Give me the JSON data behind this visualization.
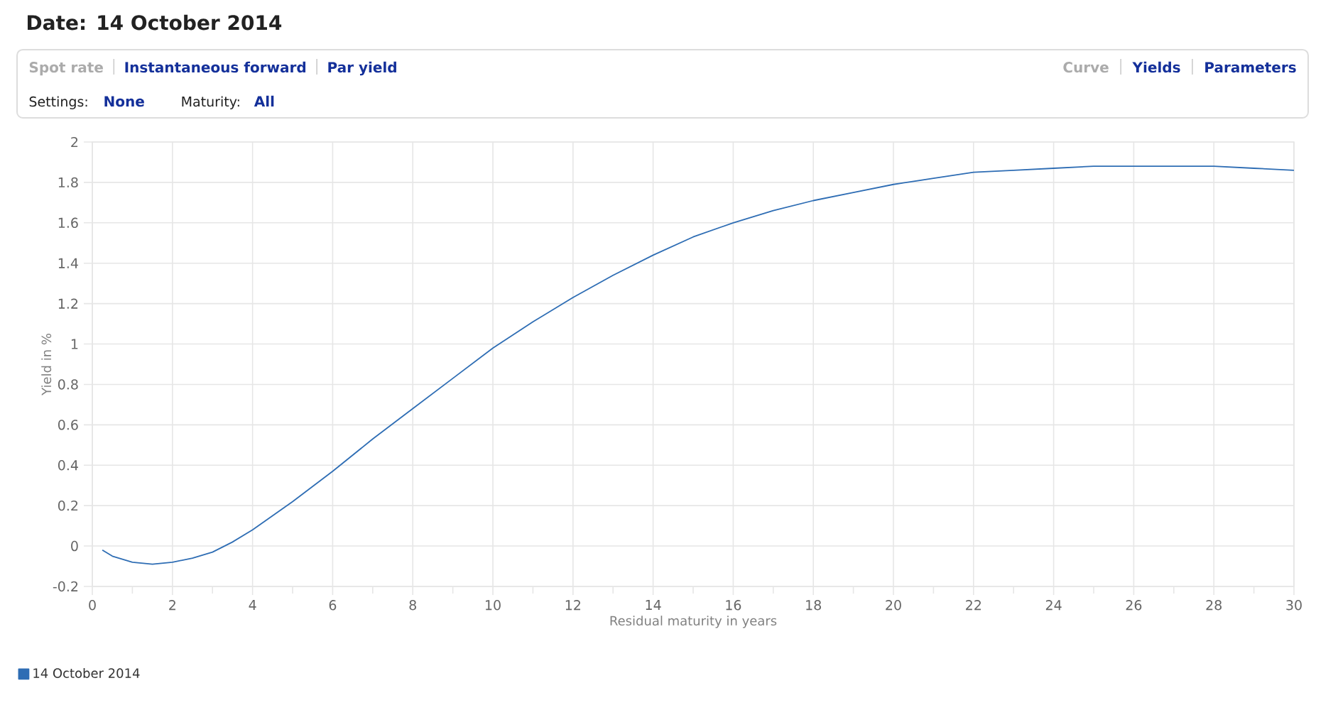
{
  "chart_data": {
    "type": "line",
    "title": "Date: 14 October 2014",
    "annotations": [
      "Spot rate",
      "Instantaneous forward",
      "Par yield",
      "Curve",
      "Yields",
      "Parameters",
      "Settings:",
      "None",
      "Maturity:",
      "All"
    ],
    "xlabel": "Residual maturity in years",
    "ylabel": "Yield in %",
    "x": [
      0.25,
      0.5,
      1,
      1.5,
      2,
      2.5,
      3,
      3.5,
      4,
      5,
      6,
      7,
      8,
      9,
      10,
      11,
      12,
      13,
      14,
      15,
      16,
      17,
      18,
      19,
      20,
      21,
      22,
      23,
      24,
      25,
      26,
      27,
      28,
      29,
      30
    ],
    "series": [
      {
        "name": "14 October 2014",
        "color": "#2e6db4",
        "values": [
          -0.02,
          -0.05,
          -0.08,
          -0.09,
          -0.08,
          -0.06,
          -0.03,
          0.02,
          0.08,
          0.22,
          0.37,
          0.53,
          0.68,
          0.83,
          0.98,
          1.11,
          1.23,
          1.34,
          1.44,
          1.53,
          1.6,
          1.66,
          1.71,
          1.75,
          1.79,
          1.82,
          1.85,
          1.86,
          1.87,
          1.88,
          1.88,
          1.88,
          1.88,
          1.87,
          1.86
        ]
      }
    ],
    "xlim": [
      0,
      30
    ],
    "xticks": [
      0,
      {
        "value": 1,
        "label": null
      },
      2,
      {
        "value": 3,
        "label": null
      },
      4,
      {
        "value": 5,
        "label": null
      },
      6,
      {
        "value": 7,
        "label": null
      },
      8,
      {
        "value": 9,
        "label": null
      },
      10,
      {
        "value": 11,
        "label": null
      },
      12,
      {
        "value": 13,
        "label": null
      },
      14,
      {
        "value": 15,
        "label": null
      },
      16,
      {
        "value": 17,
        "label": null
      },
      18,
      {
        "value": 19,
        "label": null
      },
      20,
      {
        "value": 21,
        "label": null
      },
      22,
      {
        "value": 23,
        "label": null
      },
      24,
      {
        "value": 25,
        "label": null
      },
      26,
      {
        "value": 27,
        "label": null
      },
      28,
      {
        "value": 29,
        "label": null
      },
      30
    ],
    "ylim": [
      -0.2,
      2
    ],
    "yticks": [
      -0.2,
      0,
      0.2,
      0.4,
      0.6,
      0.8,
      1,
      1.2,
      1.4,
      1.6,
      1.8,
      2
    ],
    "grid": true,
    "legend": "bottom left"
  }
}
